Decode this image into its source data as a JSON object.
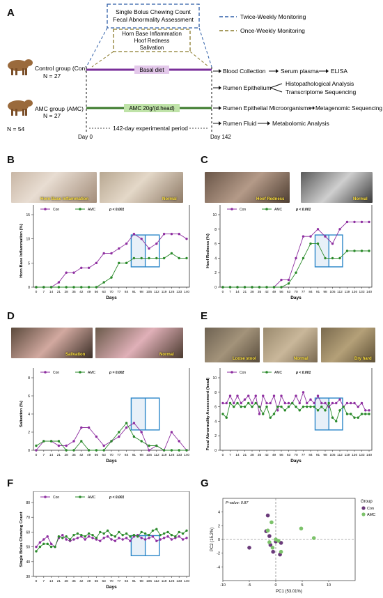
{
  "panel_letters": {
    "A": "A",
    "B": "B",
    "C": "C",
    "D": "D",
    "E": "E",
    "F": "F",
    "G": "G"
  },
  "panel_a": {
    "twice_box": [
      "Single Bolus Chewing Count",
      "Fecal Abnormality Assessment"
    ],
    "once_box": [
      "Horn Base Inflammation",
      "Hoof Redness",
      "Salivation"
    ],
    "legend_twice": "Twice-Weekly Monitoring",
    "legend_once": "Once-Weekly Monitoring",
    "control_group": [
      "Control group (Con)",
      "N = 27"
    ],
    "amc_group": [
      "AMC group (AMC)",
      "N = 27"
    ],
    "total_n": "N = 54",
    "basal_diet": "Basal diet",
    "amc_diet": "AMC 20g/(d.head)",
    "period": "142-day experimental period",
    "day0": "Day 0",
    "day142": "Day 142",
    "outcomes": {
      "blood": "Blood Collection",
      "serum": "Serum plasma",
      "elisa": "ELISA",
      "epith": "Rumen Epithelium",
      "histo": "Histopathological Analysis",
      "trans": "Transcriptome Sequencing",
      "micro": "Rumen Epithelial Microorganisms",
      "meta": "Metagenomic Sequencing",
      "fluid": "Rumen Fluid",
      "metab": "Metabolomic Analysis"
    },
    "colors": {
      "control_bar": "#7a2f9a",
      "amc_bar": "#3a7a2a",
      "basal_fill": "#e3c8ea",
      "amc_fill": "#bfe3a8",
      "twice": "#2e5ea8",
      "once": "#8a7a2a"
    }
  },
  "photos": {
    "b": [
      "Horn Base Inflammation",
      "Normal"
    ],
    "c": [
      "Hoof Redness",
      "Normal"
    ],
    "d": [
      "Salivation",
      "Normal"
    ],
    "e": [
      "Loose stool",
      "Normal",
      "Dry hard"
    ]
  },
  "legend": {
    "con": "Con",
    "amc": "AMC",
    "con_color": "#8e2ea0",
    "amc_color": "#2a8a2a",
    "highlight": "#2a86c8"
  },
  "chart_data": [
    {
      "id": "B",
      "type": "line",
      "title": "",
      "xlabel": "Days",
      "ylabel": "Horn Base Inflammation (%)",
      "pvalue": "p < 0.001",
      "x": [
        0,
        7,
        14,
        21,
        28,
        35,
        42,
        49,
        56,
        63,
        70,
        77,
        84,
        91,
        98,
        105,
        112,
        119,
        126,
        133,
        140
      ],
      "ylim": [
        0,
        15
      ],
      "yticks": [
        0,
        5,
        10,
        15
      ],
      "series": [
        {
          "name": "Con",
          "values": [
            0,
            0,
            0,
            1,
            3,
            3,
            4,
            4,
            5,
            7,
            7,
            8,
            9,
            11,
            10,
            8,
            9,
            11,
            11,
            11,
            10
          ]
        },
        {
          "name": "AMC",
          "values": [
            0,
            0,
            0,
            0,
            0,
            0,
            0,
            0,
            0,
            1,
            2,
            5,
            5,
            6,
            6,
            6,
            6,
            6,
            7,
            6,
            6
          ]
        }
      ],
      "highlight": [
        91,
        112
      ]
    },
    {
      "id": "C",
      "type": "line",
      "title": "",
      "xlabel": "Days",
      "ylabel": "Hoof Redness (%)",
      "pvalue": "p < 0.001",
      "x": [
        0,
        7,
        14,
        21,
        28,
        35,
        42,
        49,
        56,
        63,
        70,
        77,
        84,
        91,
        98,
        105,
        112,
        119,
        126,
        133,
        140
      ],
      "ylim": [
        0,
        10
      ],
      "yticks": [
        0,
        2,
        4,
        6,
        8,
        10
      ],
      "series": [
        {
          "name": "Con",
          "values": [
            0,
            0,
            0,
            0,
            0,
            0,
            0,
            0,
            1,
            1,
            4,
            7,
            7,
            8,
            7,
            6,
            8,
            9,
            9,
            9,
            9
          ]
        },
        {
          "name": "AMC",
          "values": [
            0,
            0,
            0,
            0,
            0,
            0,
            0,
            0,
            0,
            0.5,
            2,
            4,
            6,
            6,
            4,
            4,
            4,
            5,
            5,
            5,
            5
          ]
        }
      ],
      "highlight": [
        91,
        112
      ]
    },
    {
      "id": "D",
      "type": "line",
      "title": "",
      "xlabel": "Days",
      "ylabel": "Salivation (%)",
      "pvalue": "p = 0.002",
      "x": [
        0,
        7,
        14,
        21,
        28,
        35,
        42,
        49,
        56,
        63,
        70,
        77,
        84,
        91,
        98,
        105,
        112,
        119,
        126,
        133,
        140
      ],
      "ylim": [
        0,
        8
      ],
      "yticks": [
        0,
        2,
        4,
        6,
        8
      ],
      "series": [
        {
          "name": "Con",
          "values": [
            0,
            1,
            1,
            0.5,
            0.5,
            1,
            2.5,
            2.5,
            1.5,
            0.5,
            1,
            1.5,
            2.5,
            3,
            2,
            0,
            0.5,
            0,
            2,
            1,
            0
          ]
        },
        {
          "name": "AMC",
          "values": [
            0.5,
            1,
            1,
            1,
            0,
            0,
            1,
            0,
            0,
            0,
            1,
            2,
            3,
            1.5,
            1,
            0.5,
            0.5,
            0,
            0,
            0,
            0
          ]
        }
      ],
      "highlight": [
        91,
        112
      ]
    },
    {
      "id": "E",
      "type": "line",
      "title": "",
      "xlabel": "Days",
      "ylabel": "Fecal Abnormality Assessment (head)",
      "pvalue": "p < 0.001",
      "x": [
        0,
        3.5,
        7,
        10.5,
        14,
        17.5,
        21,
        24.5,
        28,
        31.5,
        35,
        38.5,
        42,
        45.5,
        49,
        52.5,
        56,
        59.5,
        63,
        66.5,
        70,
        73.5,
        77,
        80.5,
        84,
        87.5,
        91,
        94.5,
        98,
        101.5,
        105,
        108.5,
        112,
        115.5,
        119,
        122.5,
        126,
        129.5,
        133,
        136.5,
        140
      ],
      "xticks": [
        0,
        7,
        14,
        21,
        28,
        35,
        42,
        49,
        56,
        63,
        70,
        77,
        84,
        91,
        98,
        105,
        112,
        119,
        126,
        133,
        140
      ],
      "ylim": [
        0,
        10
      ],
      "yticks": [
        0,
        2,
        4,
        6,
        8,
        10
      ],
      "series": [
        {
          "name": "Con",
          "values": [
            6.5,
            6.5,
            7.5,
            6.5,
            7.5,
            6.5,
            7,
            7.5,
            6.5,
            7.5,
            5,
            7.5,
            6.5,
            6.5,
            7.5,
            5.5,
            7.5,
            6.5,
            6.5,
            6.5,
            7.5,
            6.5,
            8,
            6.5,
            7,
            6.5,
            7.5,
            6.5,
            6.5,
            6,
            6.5,
            6.5,
            7,
            6,
            6.5,
            6.5,
            6.5,
            6,
            6.5,
            5.5,
            5.5
          ]
        },
        {
          "name": "AMC",
          "values": [
            5,
            4.5,
            6.5,
            6,
            6.5,
            6,
            6,
            6.5,
            6,
            6.5,
            6,
            5,
            6,
            4.5,
            5,
            6,
            6,
            5.5,
            6,
            6.5,
            6,
            5.5,
            6,
            6,
            6,
            6,
            5.5,
            6,
            5.5,
            6.5,
            4.5,
            4,
            5.5,
            6,
            5,
            5,
            4.5,
            4.5,
            5,
            5,
            5
          ]
        }
      ],
      "highlight": [
        91,
        112
      ]
    },
    {
      "id": "F",
      "type": "line",
      "title": "",
      "xlabel": "Days",
      "ylabel": "Single Bolus Chewing Count",
      "pvalue": "p < 0.001",
      "x": [
        0,
        3.5,
        7,
        10.5,
        14,
        17.5,
        21,
        24.5,
        28,
        31.5,
        35,
        38.5,
        42,
        45.5,
        49,
        52.5,
        56,
        59.5,
        63,
        66.5,
        70,
        73.5,
        77,
        80.5,
        84,
        87.5,
        91,
        94.5,
        98,
        101.5,
        105,
        108.5,
        112,
        115.5,
        119,
        122.5,
        126,
        129.5,
        133,
        136.5,
        140
      ],
      "xticks": [
        0,
        7,
        14,
        21,
        28,
        35,
        42,
        49,
        56,
        63,
        70,
        77,
        84,
        91,
        98,
        105,
        112,
        119,
        126,
        133,
        140
      ],
      "ylim": [
        30,
        80
      ],
      "yticks": [
        30,
        40,
        50,
        60,
        70,
        80
      ],
      "series": [
        {
          "name": "Con",
          "values": [
            50,
            53,
            55,
            57,
            52,
            50,
            56,
            58,
            55,
            54,
            55,
            56,
            57,
            55,
            57,
            56,
            55,
            54,
            56,
            57,
            55,
            54,
            56,
            55,
            56,
            54,
            57,
            58,
            56,
            55,
            56,
            57,
            54,
            55,
            56,
            57,
            55,
            56,
            57,
            55,
            56
          ]
        },
        {
          "name": "AMC",
          "values": [
            47,
            50,
            52,
            52,
            50,
            50,
            57,
            56,
            57,
            55,
            58,
            59,
            58,
            57,
            59,
            58,
            56,
            60,
            59,
            61,
            58,
            57,
            60,
            58,
            59,
            57,
            58,
            57,
            60,
            59,
            58,
            61,
            62,
            58,
            59,
            60,
            58,
            57,
            60,
            59,
            61
          ]
        }
      ],
      "highlight": [
        91,
        112
      ]
    },
    {
      "id": "G",
      "type": "scatter",
      "title": "",
      "xlabel": "PC1 (53.01%)",
      "ylabel": "PC2 (15.2%)",
      "annotation": "P-value: 0.87",
      "xlim": [
        -10,
        15
      ],
      "ylim": [
        -6,
        6
      ],
      "xticks": [
        -10,
        -5,
        0,
        5,
        10
      ],
      "yticks": [
        -4,
        -2,
        0,
        2,
        4
      ],
      "legend_title": "Group",
      "series": [
        {
          "name": "Con",
          "points": [
            [
              -5,
              -1.2
            ],
            [
              -1.5,
              3.5
            ],
            [
              -1.8,
              1.2
            ],
            [
              -1.2,
              0.5
            ],
            [
              -0.5,
              -1.8
            ],
            [
              1,
              -0.5
            ],
            [
              0,
              -0.3
            ],
            [
              -1,
              -0.8
            ],
            [
              0.8,
              -2.2
            ]
          ]
        },
        {
          "name": "AMC",
          "points": [
            [
              -1.5,
              1.3
            ],
            [
              -0.8,
              2.5
            ],
            [
              -1.2,
              -0.4
            ],
            [
              0,
              0
            ],
            [
              0.5,
              -0.2
            ],
            [
              1,
              -1.8
            ],
            [
              4.8,
              1.6
            ],
            [
              7.2,
              0.2
            ],
            [
              -0.6,
              -1.2
            ]
          ]
        }
      ]
    }
  ]
}
